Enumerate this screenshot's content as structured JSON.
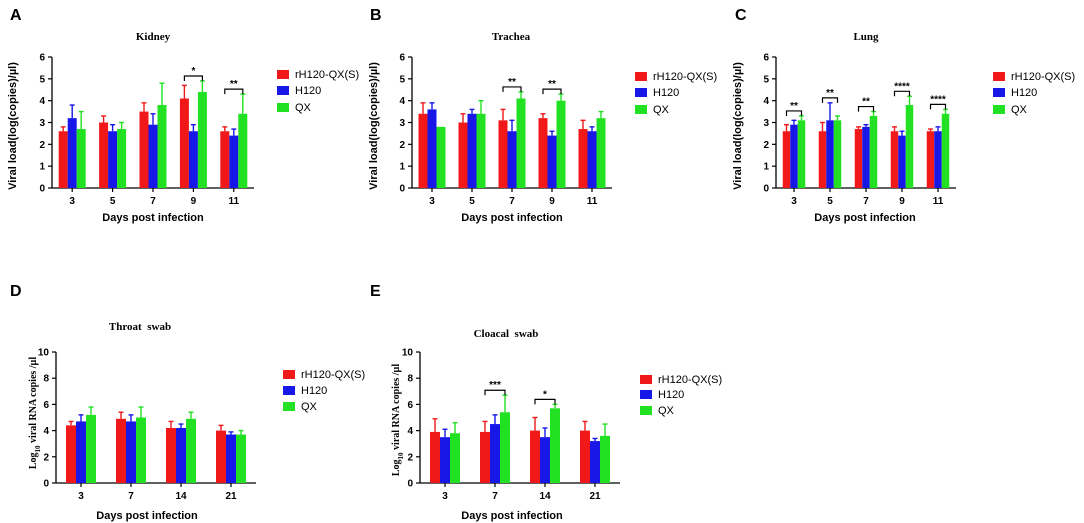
{
  "colors": {
    "rH120-QX(S)": "#f01818",
    "H120": "#1717e8",
    "QX": "#22e022"
  },
  "chart_data": [
    {
      "id": "A",
      "panel_label": "A",
      "type": "bar",
      "title": "Kidney",
      "xlabel": "Days post infection",
      "ylabel": "Viral load(log(copies)/µl)",
      "categories": [
        "3",
        "5",
        "7",
        "9",
        "11"
      ],
      "ylim": [
        0,
        6
      ],
      "yticks": [
        "0",
        "1",
        "2",
        "3",
        "4",
        "5",
        "6"
      ],
      "series": [
        {
          "name": "rH120-QX(S)",
          "values": [
            2.6,
            3.0,
            3.5,
            4.1,
            2.6
          ],
          "errors": [
            0.2,
            0.3,
            0.4,
            0.6,
            0.2
          ]
        },
        {
          "name": "H120",
          "values": [
            3.2,
            2.6,
            2.9,
            2.6,
            2.4
          ],
          "errors": [
            0.6,
            0.3,
            0.5,
            0.3,
            0.3
          ]
        },
        {
          "name": "QX",
          "values": [
            2.7,
            2.7,
            3.8,
            4.4,
            3.4
          ],
          "errors": [
            0.8,
            0.3,
            1.0,
            0.5,
            0.9
          ]
        }
      ],
      "significance": [
        {
          "category": "9",
          "label": "*"
        },
        {
          "category": "11",
          "label": "**"
        }
      ]
    },
    {
      "id": "B",
      "panel_label": "B",
      "type": "bar",
      "title": "Trachea",
      "xlabel": "Days post infection",
      "ylabel": "Viral load(log(copies)/µl)",
      "categories": [
        "3",
        "5",
        "7",
        "9",
        "11"
      ],
      "ylim": [
        0,
        6
      ],
      "yticks": [
        "0",
        "1",
        "2",
        "3",
        "4",
        "5",
        "6"
      ],
      "series": [
        {
          "name": "rH120-QX(S)",
          "values": [
            3.4,
            3.0,
            3.1,
            3.2,
            2.7
          ],
          "errors": [
            0.5,
            0.4,
            0.5,
            0.2,
            0.4
          ]
        },
        {
          "name": "H120",
          "values": [
            3.6,
            3.4,
            2.6,
            2.4,
            2.6
          ],
          "errors": [
            0.3,
            0.2,
            0.5,
            0.2,
            0.2
          ]
        },
        {
          "name": "QX",
          "values": [
            2.8,
            3.4,
            4.1,
            4.0,
            3.2
          ],
          "errors": [
            0.0,
            0.6,
            0.3,
            0.3,
            0.3
          ]
        }
      ],
      "significance": [
        {
          "category": "7",
          "label": "**"
        },
        {
          "category": "9",
          "label": "**"
        }
      ]
    },
    {
      "id": "C",
      "panel_label": "C",
      "type": "bar",
      "title": "Lung",
      "xlabel": "Days post infection",
      "ylabel": "Viral load(log(copies)/µl)",
      "categories": [
        "3",
        "5",
        "7",
        "9",
        "11"
      ],
      "ylim": [
        0,
        6
      ],
      "yticks": [
        "0",
        "1",
        "2",
        "3",
        "4",
        "5",
        "6"
      ],
      "series": [
        {
          "name": "rH120-QX(S)",
          "values": [
            2.6,
            2.6,
            2.7,
            2.6,
            2.6
          ],
          "errors": [
            0.3,
            0.4,
            0.1,
            0.2,
            0.1
          ]
        },
        {
          "name": "H120",
          "values": [
            2.9,
            3.1,
            2.8,
            2.4,
            2.6
          ],
          "errors": [
            0.2,
            0.8,
            0.1,
            0.2,
            0.2
          ]
        },
        {
          "name": "QX",
          "values": [
            3.1,
            3.1,
            3.3,
            3.8,
            3.4
          ],
          "errors": [
            0.2,
            0.2,
            0.2,
            0.4,
            0.2
          ]
        }
      ],
      "significance": [
        {
          "category": "3",
          "label": "**"
        },
        {
          "category": "5",
          "label": "**"
        },
        {
          "category": "7",
          "label": "**"
        },
        {
          "category": "9",
          "label": "****"
        },
        {
          "category": "11",
          "label": "****"
        }
      ]
    },
    {
      "id": "D",
      "panel_label": "D",
      "type": "bar",
      "title": "Throat  swab",
      "xlabel": "Days post infection",
      "ylabel": "Log10 viral RNA copies /µl",
      "categories": [
        "3",
        "7",
        "14",
        "21"
      ],
      "ylim": [
        0,
        10
      ],
      "yticks": [
        "0",
        "2",
        "4",
        "6",
        "8",
        "10"
      ],
      "series": [
        {
          "name": "rH120-QX(S)",
          "values": [
            4.4,
            4.9,
            4.2,
            4.0
          ],
          "errors": [
            0.3,
            0.5,
            0.5,
            0.4
          ]
        },
        {
          "name": "H120",
          "values": [
            4.7,
            4.7,
            4.2,
            3.7
          ],
          "errors": [
            0.5,
            0.5,
            0.3,
            0.2
          ]
        },
        {
          "name": "QX",
          "values": [
            5.2,
            5.0,
            4.9,
            3.7
          ],
          "errors": [
            0.6,
            0.8,
            0.5,
            0.3
          ]
        }
      ],
      "significance": []
    },
    {
      "id": "E",
      "panel_label": "E",
      "type": "bar",
      "title": "Cloacal  swab",
      "xlabel": "Days post infection",
      "ylabel": "Log10 viral RNA copies /µl",
      "categories": [
        "3",
        "7",
        "14",
        "21"
      ],
      "ylim": [
        0,
        10
      ],
      "yticks": [
        "0",
        "2",
        "4",
        "6",
        "8",
        "10"
      ],
      "series": [
        {
          "name": "rH120-QX(S)",
          "values": [
            3.9,
            3.9,
            4.0,
            4.0
          ],
          "errors": [
            1.0,
            0.8,
            1.0,
            0.7
          ]
        },
        {
          "name": "H120",
          "values": [
            3.5,
            4.5,
            3.5,
            3.2
          ],
          "errors": [
            0.6,
            0.7,
            0.7,
            0.2
          ]
        },
        {
          "name": "QX",
          "values": [
            3.8,
            5.4,
            5.7,
            3.6
          ],
          "errors": [
            0.8,
            1.3,
            0.3,
            0.9
          ]
        }
      ],
      "significance": [
        {
          "category": "7",
          "label": "***"
        },
        {
          "category": "14",
          "label": "*"
        }
      ]
    }
  ]
}
